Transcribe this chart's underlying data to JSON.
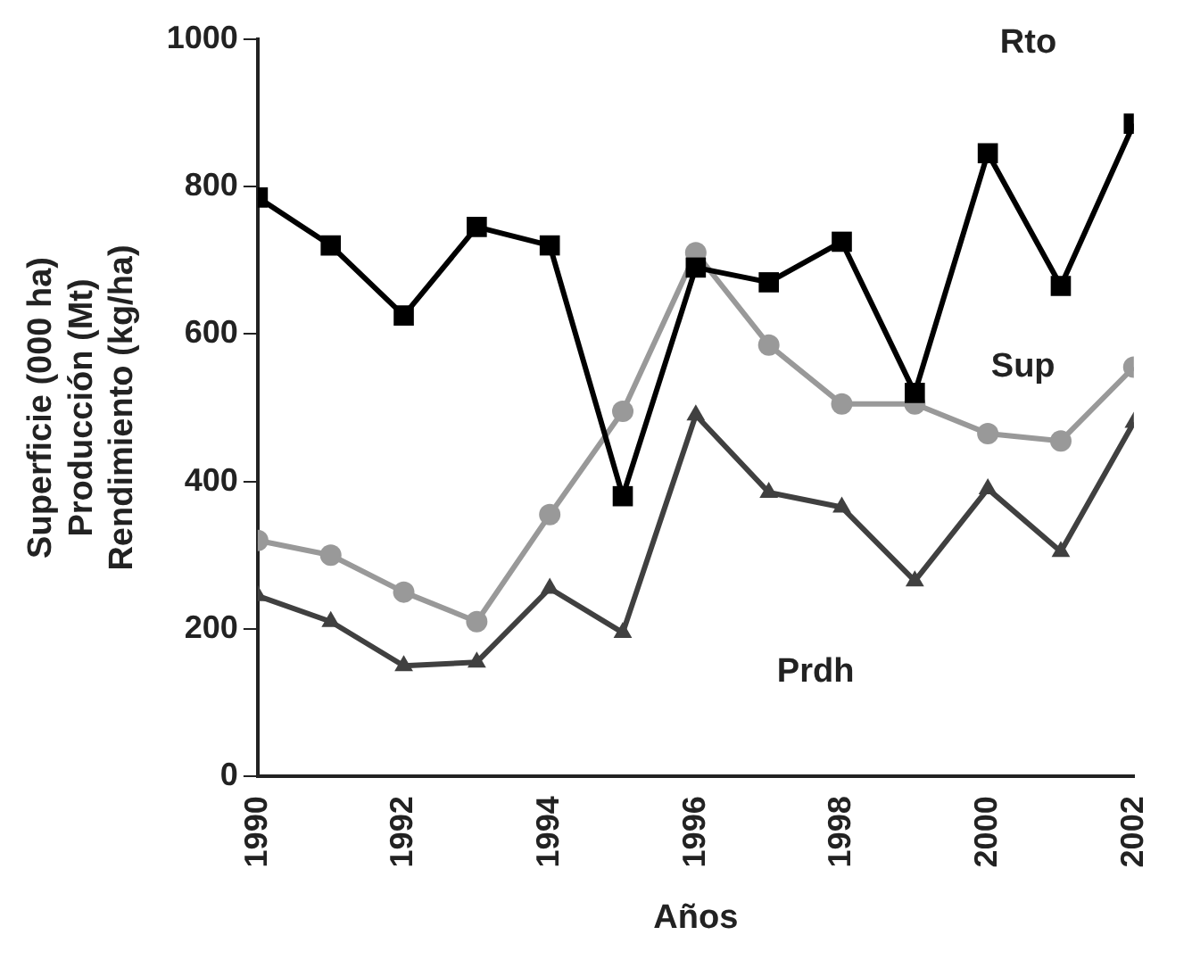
{
  "chart_data": {
    "type": "line",
    "xlabel": "Años",
    "ylabel": "Superficie (000 ha)\nProducción (Mt)\nRendimiento (kg/ha)",
    "x": [
      1990,
      1991,
      1992,
      1993,
      1994,
      1995,
      1996,
      1997,
      1998,
      1999,
      2000,
      2001,
      2002
    ],
    "xlim": [
      1990,
      2002
    ],
    "xticks": [
      1990,
      1992,
      1994,
      1996,
      1998,
      2000,
      2002
    ],
    "ylim": [
      0,
      1000
    ],
    "yticks": [
      0,
      200,
      400,
      600,
      800,
      1000
    ],
    "grid": false,
    "legend": false,
    "series": [
      {
        "name": "Rto",
        "color": "#000000",
        "marker": "square",
        "values": [
          785,
          720,
          625,
          745,
          720,
          380,
          690,
          670,
          725,
          520,
          845,
          665,
          885
        ]
      },
      {
        "name": "Sup",
        "color": "#999999",
        "marker": "circle",
        "values": [
          320,
          300,
          250,
          210,
          355,
          495,
          710,
          585,
          505,
          505,
          465,
          455,
          555
        ]
      },
      {
        "name": "Prdh",
        "color": "#404040",
        "marker": "triangle",
        "values": [
          245,
          210,
          150,
          155,
          255,
          195,
          490,
          385,
          365,
          265,
          390,
          305,
          480
        ]
      }
    ]
  }
}
